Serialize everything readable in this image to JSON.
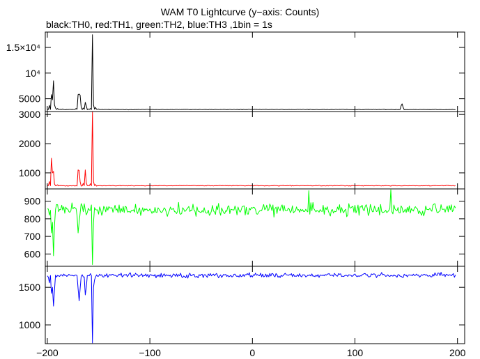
{
  "chart_data": {
    "type": "line",
    "title": "WAM T0 Lightcurve (y−axis: Counts)",
    "subtitle": "black:TH0, red:TH1, green:TH2, blue:TH3 ,1bin = 1s",
    "xlim": [
      -202,
      207
    ],
    "x_ticks": [
      -200,
      -100,
      0,
      100,
      200
    ],
    "x_tick_labels": [
      "−200",
      "−100",
      "0",
      "100",
      "200"
    ],
    "grid": false,
    "panels": [
      {
        "series": "TH0",
        "color": "#000000",
        "ylim": [
          2500,
          18000
        ],
        "y_ticks": [
          5000,
          10000,
          15000
        ],
        "y_tick_labels": [
          "5000",
          "10⁴",
          "1.5×10⁴"
        ],
        "baseline": 2900,
        "noise": 60,
        "features": [
          [
            -198,
            3700
          ],
          [
            -196,
            5800
          ],
          [
            -195,
            4800
          ],
          [
            -194,
            8500
          ],
          [
            -193,
            3800
          ],
          [
            -192,
            3200
          ],
          [
            -190,
            3100
          ],
          [
            -185,
            3000
          ],
          [
            -172,
            3100
          ],
          [
            -170,
            5800
          ],
          [
            -169,
            5900
          ],
          [
            -168,
            5700
          ],
          [
            -167,
            3400
          ],
          [
            -165,
            3200
          ],
          [
            -163,
            4300
          ],
          [
            -162,
            3600
          ],
          [
            -160,
            3000
          ],
          [
            -158,
            3100
          ],
          [
            -156,
            17500
          ],
          [
            -155,
            3800
          ],
          [
            -153,
            3300
          ],
          [
            -150,
            3000
          ],
          [
            145,
            3600
          ],
          [
            146,
            4000
          ],
          [
            147,
            3300
          ]
        ]
      },
      {
        "series": "TH1",
        "color": "#ff0000",
        "ylim": [
          450,
          3100
        ],
        "y_ticks": [
          1000,
          2000,
          3000
        ],
        "y_tick_labels": [
          "1000",
          "2000",
          "3000"
        ],
        "baseline": 560,
        "noise": 12,
        "features": [
          [
            -198,
            700
          ],
          [
            -196,
            1500
          ],
          [
            -195,
            1000
          ],
          [
            -194,
            1050
          ],
          [
            -193,
            620
          ],
          [
            -190,
            590
          ],
          [
            -170,
            1100
          ],
          [
            -169,
            1080
          ],
          [
            -168,
            700
          ],
          [
            -165,
            640
          ],
          [
            -163,
            1100
          ],
          [
            -162,
            650
          ],
          [
            -158,
            630
          ],
          [
            -156,
            3100
          ],
          [
            -155,
            700
          ],
          [
            -153,
            600
          ]
        ]
      },
      {
        "series": "TH2",
        "color": "#00ff00",
        "ylim": [
          530,
          970
        ],
        "y_ticks": [
          600,
          700,
          800,
          900
        ],
        "y_tick_labels": [
          "600",
          "700",
          "800",
          "900"
        ],
        "baseline": 850,
        "noise": 35,
        "features": [
          [
            -198,
            820
          ],
          [
            -196,
            720
          ],
          [
            -195,
            780
          ],
          [
            -194,
            590
          ],
          [
            -193,
            760
          ],
          [
            -190,
            880
          ],
          [
            -170,
            720
          ],
          [
            -169,
            780
          ],
          [
            -156,
            540
          ],
          [
            -155,
            780
          ],
          [
            55,
            960
          ],
          [
            135,
            965
          ]
        ]
      },
      {
        "series": "TH3",
        "color": "#0000ff",
        "ylim": [
          750,
          1780
        ],
        "y_ticks": [
          1000,
          1500
        ],
        "y_tick_labels": [
          "1000",
          "1500"
        ],
        "baseline": 1660,
        "noise": 30,
        "features": [
          [
            -198,
            1560
          ],
          [
            -196,
            1420
          ],
          [
            -195,
            1500
          ],
          [
            -194,
            1250
          ],
          [
            -193,
            1460
          ],
          [
            -170,
            1480
          ],
          [
            -169,
            1320
          ],
          [
            -168,
            1480
          ],
          [
            -163,
            1400
          ],
          [
            -162,
            1500
          ],
          [
            -156,
            760
          ],
          [
            -155,
            1500
          ],
          [
            -154,
            1600
          ]
        ]
      }
    ]
  }
}
